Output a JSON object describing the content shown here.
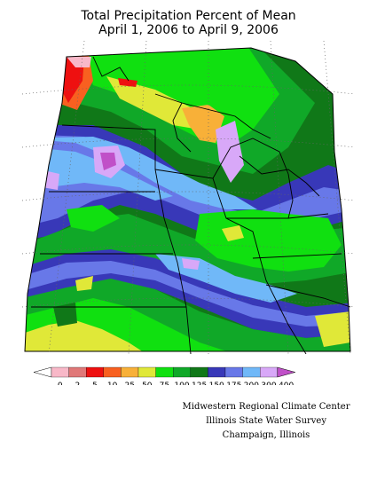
{
  "title_line1": "Total Precipitation Percent of Mean",
  "title_line2": "April 1, 2006 to April 9, 2006",
  "legend": {
    "colors": [
      "#ffffff",
      "#f8b8c8",
      "#e07878",
      "#ee1010",
      "#f86020",
      "#f8b038",
      "#e0e838",
      "#10e010",
      "#10a828",
      "#107818",
      "#3838b8",
      "#6878e8",
      "#70b8f8",
      "#d8a8f8",
      "#c050c8"
    ],
    "labels": [
      "0",
      "2",
      "5",
      "10",
      "25",
      "50",
      "75",
      "100",
      "125",
      "150",
      "175",
      "200",
      "300",
      "400"
    ]
  },
  "credits": {
    "line1": "Midwestern Regional Climate Center",
    "line2": "Illinois State Water Survey",
    "line3": "Champaign, Illinois"
  }
}
